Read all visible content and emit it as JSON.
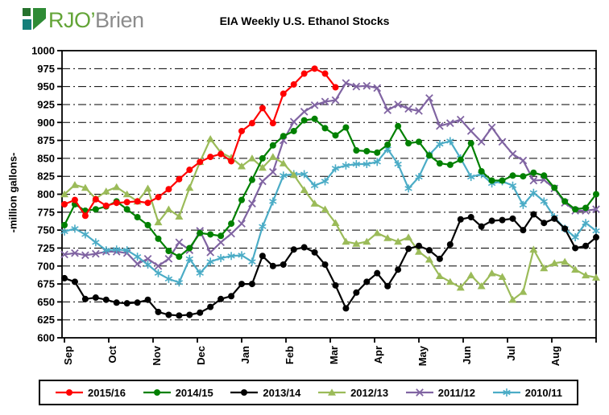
{
  "logo": {
    "text_primary": "RJO’",
    "text_secondary": "Brien"
  },
  "chart_data": {
    "type": "line",
    "title": "EIA Weekly U.S. Ethanol Stocks",
    "xlabel": "",
    "ylabel": "-million gallons-",
    "ylim": [
      600,
      1000
    ],
    "y_step": 25,
    "grid": "horizontal dash-dot",
    "legend_position": "bottom",
    "x_ticks": [
      "Sep",
      "Oct",
      "Nov",
      "Dec",
      "Jan",
      "Feb",
      "Mar",
      "Apr",
      "May",
      "Jun",
      "Jul",
      "Aug"
    ],
    "x_unit": "weekly",
    "weeks_total": 52,
    "series": [
      {
        "name": "2015/16",
        "color": "#FF0000",
        "marker": "circle",
        "values": [
          786,
          792,
          770,
          793,
          784,
          788,
          789,
          790,
          788,
          796,
          807,
          821,
          834,
          845,
          852,
          856,
          846,
          888,
          899,
          920,
          899,
          940,
          953,
          968,
          975,
          968,
          949
        ]
      },
      {
        "name": "2014/15",
        "color": "#008000",
        "marker": "circle",
        "values": [
          757,
          786,
          777,
          779,
          783,
          790,
          779,
          768,
          757,
          738,
          721,
          713,
          725,
          746,
          744,
          742,
          759,
          792,
          820,
          850,
          868,
          881,
          888,
          903,
          905,
          892,
          882,
          893,
          861,
          860,
          858,
          869,
          895,
          871,
          873,
          854,
          843,
          841,
          848,
          871,
          832,
          819,
          819,
          826,
          825,
          830,
          826,
          809,
          790,
          779,
          781,
          800
        ]
      },
      {
        "name": "2013/14",
        "color": "#000000",
        "marker": "circle",
        "values": [
          683,
          678,
          654,
          656,
          653,
          649,
          648,
          649,
          653,
          636,
          632,
          631,
          632,
          635,
          643,
          654,
          658,
          675,
          675,
          714,
          700,
          702,
          723,
          726,
          719,
          702,
          673,
          641,
          663,
          678,
          690,
          672,
          695,
          724,
          728,
          722,
          710,
          730,
          765,
          768,
          755,
          763,
          764,
          766,
          750,
          772,
          760,
          766,
          752,
          725,
          728,
          740
        ]
      },
      {
        "name": "2012/13",
        "color": "#9BBB59",
        "marker": "triangle",
        "values": [
          800,
          813,
          809,
          794,
          804,
          810,
          800,
          790,
          808,
          761,
          779,
          769,
          809,
          845,
          877,
          858,
          851,
          839,
          850,
          837,
          852,
          843,
          827,
          806,
          787,
          779,
          760,
          734,
          731,
          734,
          746,
          739,
          734,
          740,
          720,
          709,
          686,
          678,
          670,
          687,
          672,
          690,
          685,
          653,
          664,
          723,
          697,
          704,
          706,
          695,
          687,
          684
        ]
      },
      {
        "name": "2011/12",
        "color": "#8064A2",
        "marker": "x",
        "values": [
          716,
          718,
          715,
          717,
          720,
          720,
          718,
          703,
          710,
          700,
          710,
          733,
          722,
          749,
          719,
          733,
          745,
          759,
          787,
          818,
          831,
          875,
          901,
          915,
          924,
          929,
          931,
          955,
          950,
          951,
          948,
          917,
          925,
          919,
          916,
          934,
          895,
          899,
          904,
          888,
          873,
          893,
          873,
          856,
          847,
          819,
          820,
          808,
          788,
          777,
          777,
          779
        ]
      },
      {
        "name": "2010/11",
        "color": "#4BACC6",
        "marker": "asterisk",
        "values": [
          748,
          752,
          744,
          733,
          722,
          723,
          722,
          713,
          702,
          690,
          682,
          677,
          710,
          690,
          706,
          711,
          714,
          715,
          706,
          755,
          790,
          826,
          828,
          828,
          812,
          818,
          836,
          840,
          842,
          842,
          845,
          863,
          842,
          808,
          824,
          855,
          870,
          874,
          850,
          824,
          828,
          815,
          818,
          812,
          785,
          802,
          790,
          768,
          752,
          740,
          760,
          749
        ]
      }
    ]
  }
}
